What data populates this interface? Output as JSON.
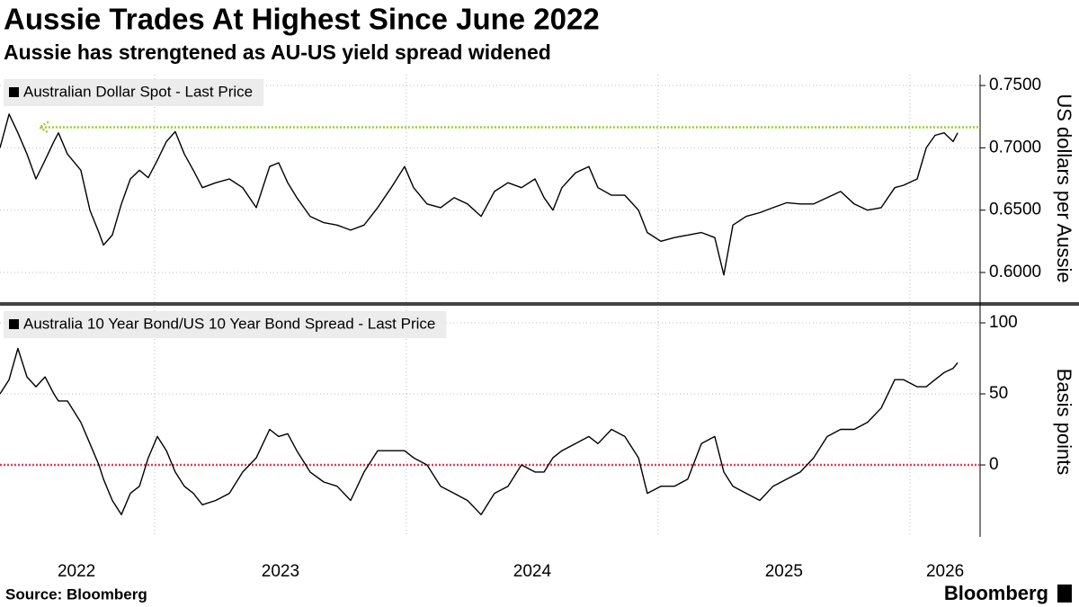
{
  "header": {
    "title": "Aussie Trades At Highest Since June 2022",
    "subtitle": "Aussie has strengtened as AU-US yield spread widened"
  },
  "footer": {
    "source": "Source: Bloomberg",
    "logo": "Bloomberg"
  },
  "chart_data": [
    {
      "type": "line",
      "ylabel": "US dollars per Aussie",
      "x": [
        2022.386,
        2022.422,
        2022.457,
        2022.493,
        2022.529,
        2022.565,
        2022.6,
        2022.618,
        2022.654,
        2022.707,
        2022.743,
        2022.779,
        2022.797,
        2022.832,
        2022.868,
        2022.904,
        2022.94,
        2022.975,
        2023.011,
        2023.047,
        2023.082,
        2023.118,
        2023.154,
        2023.19,
        2023.243,
        2023.297,
        2023.35,
        2023.404,
        2023.457,
        2023.493,
        2023.529,
        2023.565,
        2023.618,
        2023.672,
        2023.725,
        2023.779,
        2023.832,
        2023.886,
        2023.94,
        2023.993,
        2024.029,
        2024.082,
        2024.136,
        2024.19,
        2024.243,
        2024.297,
        2024.35,
        2024.404,
        2024.457,
        2024.511,
        2024.547,
        2024.582,
        2024.618,
        2024.672,
        2024.725,
        2024.761,
        2024.815,
        2024.868,
        2024.922,
        2024.957,
        2025.011,
        2025.065,
        2025.118,
        2025.172,
        2025.225,
        2025.261,
        2025.297,
        2025.35,
        2025.404,
        2025.457,
        2025.511,
        2025.565,
        2025.618,
        2025.672,
        2025.725,
        2025.779,
        2025.832,
        2025.886,
        2025.94,
        2025.975,
        2026.029,
        2026.065,
        2026.1,
        2026.136,
        2026.172,
        2026.19
      ],
      "series": [
        {
          "name": "Australian Dollar Spot - Last Price",
          "color": "#000000",
          "values": [
            0.7,
            0.727,
            0.712,
            0.695,
            0.675,
            0.69,
            0.705,
            0.712,
            0.695,
            0.682,
            0.65,
            0.632,
            0.622,
            0.63,
            0.655,
            0.675,
            0.682,
            0.676,
            0.69,
            0.705,
            0.713,
            0.695,
            0.682,
            0.668,
            0.672,
            0.675,
            0.668,
            0.652,
            0.685,
            0.688,
            0.672,
            0.66,
            0.645,
            0.64,
            0.638,
            0.634,
            0.638,
            0.652,
            0.668,
            0.685,
            0.668,
            0.655,
            0.652,
            0.66,
            0.655,
            0.645,
            0.665,
            0.672,
            0.668,
            0.675,
            0.66,
            0.65,
            0.668,
            0.68,
            0.685,
            0.668,
            0.662,
            0.662,
            0.65,
            0.632,
            0.625,
            0.628,
            0.63,
            0.632,
            0.628,
            0.598,
            0.638,
            0.645,
            0.648,
            0.652,
            0.656,
            0.655,
            0.655,
            0.66,
            0.665,
            0.655,
            0.65,
            0.652,
            0.668,
            0.67,
            0.675,
            0.7,
            0.71,
            0.712,
            0.705,
            0.712
          ]
        }
      ],
      "xlim": [
        2022.386,
        2026.279
      ],
      "xgrid": [
        2023,
        2024,
        2025,
        2026
      ],
      "ylim": [
        0.5762,
        0.7587
      ],
      "yticks": [
        {
          "value": 0.6,
          "label": "0.6000"
        },
        {
          "value": 0.65,
          "label": "0.6500"
        },
        {
          "value": 0.7,
          "label": "0.7000"
        },
        {
          "value": 0.75,
          "label": "0.7500"
        }
      ],
      "grid": true,
      "reference_line": {
        "value": 0.7165,
        "from": 2022.55,
        "color": "#9acd32"
      }
    },
    {
      "type": "line",
      "ylabel": "Basis points",
      "x": [
        2022.386,
        2022.422,
        2022.457,
        2022.493,
        2022.529,
        2022.565,
        2022.6,
        2022.618,
        2022.654,
        2022.707,
        2022.743,
        2022.779,
        2022.797,
        2022.832,
        2022.868,
        2022.904,
        2022.94,
        2022.975,
        2023.011,
        2023.047,
        2023.082,
        2023.118,
        2023.154,
        2023.19,
        2023.243,
        2023.297,
        2023.35,
        2023.404,
        2023.457,
        2023.493,
        2023.529,
        2023.565,
        2023.618,
        2023.672,
        2023.725,
        2023.779,
        2023.832,
        2023.886,
        2023.94,
        2023.993,
        2024.029,
        2024.082,
        2024.136,
        2024.19,
        2024.243,
        2024.297,
        2024.35,
        2024.404,
        2024.457,
        2024.511,
        2024.547,
        2024.582,
        2024.618,
        2024.672,
        2024.725,
        2024.761,
        2024.815,
        2024.868,
        2024.922,
        2024.957,
        2025.011,
        2025.065,
        2025.118,
        2025.172,
        2025.225,
        2025.261,
        2025.297,
        2025.35,
        2025.404,
        2025.457,
        2025.511,
        2025.565,
        2025.618,
        2025.672,
        2025.725,
        2025.779,
        2025.832,
        2025.886,
        2025.94,
        2025.975,
        2026.029,
        2026.065,
        2026.1,
        2026.136,
        2026.172,
        2026.19
      ],
      "series": [
        {
          "name": "Australia 10 Year Bond/US 10 Year Bond Spread - Last Price",
          "color": "#000000",
          "values": [
            50,
            60,
            82,
            62,
            55,
            62,
            50,
            45,
            45,
            30,
            15,
            0,
            -10,
            -25,
            -35,
            -20,
            -15,
            5,
            20,
            10,
            -5,
            -15,
            -20,
            -28,
            -25,
            -20,
            -5,
            5,
            25,
            20,
            22,
            10,
            -5,
            -12,
            -15,
            -25,
            -5,
            10,
            10,
            10,
            5,
            0,
            -15,
            -20,
            -25,
            -35,
            -20,
            -15,
            0,
            -5,
            -5,
            5,
            10,
            15,
            20,
            15,
            25,
            20,
            5,
            -20,
            -15,
            -15,
            -10,
            15,
            20,
            -5,
            -15,
            -20,
            -25,
            -15,
            -10,
            -5,
            5,
            20,
            25,
            25,
            30,
            40,
            60,
            60,
            55,
            55,
            60,
            65,
            68,
            72
          ]
        }
      ],
      "xlim": [
        2022.386,
        2026.279
      ],
      "xgrid": [
        2023,
        2024,
        2025,
        2026
      ],
      "xticks": [
        {
          "value": 2022.69,
          "label": "2022"
        },
        {
          "value": 2023.5,
          "label": "2023"
        },
        {
          "value": 2024.5,
          "label": "2024"
        },
        {
          "value": 2025.5,
          "label": "2025"
        },
        {
          "value": 2026.14,
          "label": "2026"
        }
      ],
      "ylim": [
        -50.6,
        111.4
      ],
      "yticks": [
        0,
        50,
        100
      ],
      "grid": true,
      "reference_line": {
        "value": 0,
        "color": "#e0405a"
      }
    }
  ]
}
